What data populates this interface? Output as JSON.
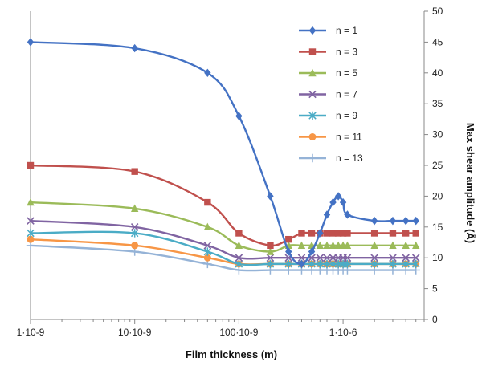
{
  "chart_data": {
    "type": "line",
    "xlabel": "Film thickness (m)",
    "ylabel": "Max shear amplitude (Å)",
    "x_scale": "log",
    "xlim": [
      1e-09,
      6e-06
    ],
    "ylim": [
      0,
      50
    ],
    "y_axis_position": "right",
    "grid": false,
    "legend_placement": "top-right",
    "x_ticks": [
      {
        "value": 1e-09,
        "label": "1·10-9"
      },
      {
        "value": 1e-08,
        "label": "10·10-9"
      },
      {
        "value": 1e-07,
        "label": "100·10-9"
      },
      {
        "value": 1e-06,
        "label": "1·10-6"
      }
    ],
    "y_ticks": [
      0,
      5,
      10,
      15,
      20,
      25,
      30,
      35,
      40,
      45,
      50
    ],
    "series": [
      {
        "name": "n = 1",
        "color": "#4472C4",
        "marker": "diamond",
        "points": [
          [
            1e-09,
            45
          ],
          [
            1e-08,
            44
          ],
          [
            5e-08,
            40
          ],
          [
            1e-07,
            33
          ],
          [
            2e-07,
            20
          ],
          [
            3e-07,
            11
          ],
          [
            4e-07,
            9
          ],
          [
            5e-07,
            11
          ],
          [
            6e-07,
            14
          ],
          [
            7e-07,
            17
          ],
          [
            8e-07,
            19
          ],
          [
            9e-07,
            20
          ],
          [
            1e-06,
            19
          ],
          [
            1.1e-06,
            17
          ],
          [
            2e-06,
            16
          ],
          [
            3e-06,
            16
          ],
          [
            4e-06,
            16
          ],
          [
            5e-06,
            16
          ]
        ]
      },
      {
        "name": "n = 3",
        "color": "#C0504D",
        "marker": "square",
        "points": [
          [
            1e-09,
            25
          ],
          [
            1e-08,
            24
          ],
          [
            5e-08,
            19
          ],
          [
            1e-07,
            14
          ],
          [
            2e-07,
            12
          ],
          [
            3e-07,
            13
          ],
          [
            4e-07,
            14
          ],
          [
            5e-07,
            14
          ],
          [
            6e-07,
            14
          ],
          [
            7e-07,
            14
          ],
          [
            8e-07,
            14
          ],
          [
            9e-07,
            14
          ],
          [
            1e-06,
            14
          ],
          [
            1.1e-06,
            14
          ],
          [
            2e-06,
            14
          ],
          [
            3e-06,
            14
          ],
          [
            4e-06,
            14
          ],
          [
            5e-06,
            14
          ]
        ]
      },
      {
        "name": "n = 5",
        "color": "#9BBB59",
        "marker": "triangle",
        "points": [
          [
            1e-09,
            19
          ],
          [
            1e-08,
            18
          ],
          [
            5e-08,
            15
          ],
          [
            1e-07,
            12
          ],
          [
            2e-07,
            11
          ],
          [
            3e-07,
            12
          ],
          [
            4e-07,
            12
          ],
          [
            5e-07,
            12
          ],
          [
            6e-07,
            12
          ],
          [
            7e-07,
            12
          ],
          [
            8e-07,
            12
          ],
          [
            9e-07,
            12
          ],
          [
            1e-06,
            12
          ],
          [
            1.1e-06,
            12
          ],
          [
            2e-06,
            12
          ],
          [
            3e-06,
            12
          ],
          [
            4e-06,
            12
          ],
          [
            5e-06,
            12
          ]
        ]
      },
      {
        "name": "n = 7",
        "color": "#8064A2",
        "marker": "x",
        "points": [
          [
            1e-09,
            16
          ],
          [
            1e-08,
            15
          ],
          [
            5e-08,
            12
          ],
          [
            1e-07,
            10
          ],
          [
            2e-07,
            10
          ],
          [
            3e-07,
            10
          ],
          [
            4e-07,
            10
          ],
          [
            5e-07,
            10
          ],
          [
            6e-07,
            10
          ],
          [
            7e-07,
            10
          ],
          [
            8e-07,
            10
          ],
          [
            9e-07,
            10
          ],
          [
            1e-06,
            10
          ],
          [
            1.1e-06,
            10
          ],
          [
            2e-06,
            10
          ],
          [
            3e-06,
            10
          ],
          [
            4e-06,
            10
          ],
          [
            5e-06,
            10
          ]
        ]
      },
      {
        "name": "n = 9",
        "color": "#4BACC6",
        "marker": "star",
        "points": [
          [
            1e-09,
            14
          ],
          [
            1e-08,
            14
          ],
          [
            5e-08,
            11
          ],
          [
            1e-07,
            9
          ],
          [
            2e-07,
            9
          ],
          [
            3e-07,
            9
          ],
          [
            4e-07,
            9
          ],
          [
            5e-07,
            9
          ],
          [
            6e-07,
            9
          ],
          [
            7e-07,
            9
          ],
          [
            8e-07,
            9
          ],
          [
            9e-07,
            9
          ],
          [
            1e-06,
            9
          ],
          [
            1.1e-06,
            9
          ],
          [
            2e-06,
            9
          ],
          [
            3e-06,
            9
          ],
          [
            4e-06,
            9
          ],
          [
            5e-06,
            9
          ]
        ]
      },
      {
        "name": "n = 11",
        "color": "#F79646",
        "marker": "circle",
        "points": [
          [
            1e-09,
            13
          ],
          [
            1e-08,
            12
          ],
          [
            5e-08,
            10
          ],
          [
            1e-07,
            9
          ],
          [
            2e-07,
            9
          ],
          [
            3e-07,
            9
          ],
          [
            4e-07,
            9
          ],
          [
            5e-07,
            9
          ],
          [
            6e-07,
            9
          ],
          [
            7e-07,
            9
          ],
          [
            8e-07,
            9
          ],
          [
            9e-07,
            9
          ],
          [
            1e-06,
            9
          ],
          [
            1.1e-06,
            9
          ],
          [
            2e-06,
            9
          ],
          [
            3e-06,
            9
          ],
          [
            4e-06,
            9
          ],
          [
            5e-06,
            9
          ]
        ]
      },
      {
        "name": "n = 13",
        "color": "#95B3D7",
        "marker": "plus",
        "points": [
          [
            1e-09,
            12
          ],
          [
            1e-08,
            11
          ],
          [
            5e-08,
            9
          ],
          [
            1e-07,
            8
          ],
          [
            2e-07,
            8
          ],
          [
            3e-07,
            8
          ],
          [
            4e-07,
            8
          ],
          [
            5e-07,
            8
          ],
          [
            6e-07,
            8
          ],
          [
            7e-07,
            8
          ],
          [
            8e-07,
            8
          ],
          [
            9e-07,
            8
          ],
          [
            1e-06,
            8
          ],
          [
            1.1e-06,
            8
          ],
          [
            2e-06,
            8
          ],
          [
            3e-06,
            8
          ],
          [
            4e-06,
            8
          ],
          [
            5e-06,
            8
          ]
        ]
      }
    ]
  }
}
